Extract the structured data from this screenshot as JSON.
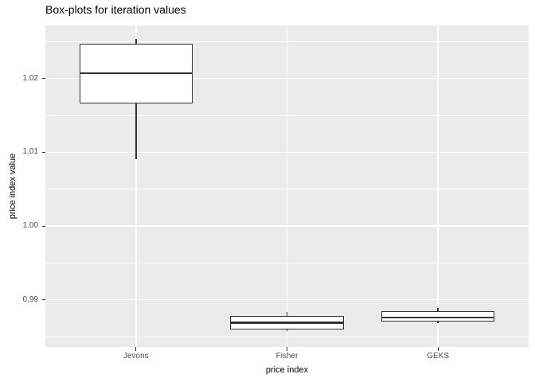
{
  "chart_data": {
    "type": "boxplot",
    "title": "Box-plots for iteration values",
    "xlabel": "price index",
    "ylabel": "price index value",
    "categories": [
      "Jevons",
      "Fisher",
      "GEKS"
    ],
    "series": [
      {
        "name": "Jevons",
        "whisker_low": 1.0091,
        "q1": 1.0166,
        "median": 1.0207,
        "q3": 1.0247,
        "whisker_high": 1.0254
      },
      {
        "name": "Fisher",
        "whisker_low": 0.9858,
        "q1": 0.986,
        "median": 0.9869,
        "q3": 0.9878,
        "whisker_high": 0.9883
      },
      {
        "name": "GEKS",
        "whisker_low": 0.9868,
        "q1": 0.987,
        "median": 0.9876,
        "q3": 0.9885,
        "whisker_high": 0.9889
      }
    ],
    "ylim": [
      0.9836,
      1.0272
    ],
    "yticks_major": [
      0.99,
      1.0,
      1.01,
      1.02
    ],
    "ytick_labels": [
      "0.99",
      "1.00",
      "1.01",
      "1.02"
    ],
    "yticks_minor": [
      0.985,
      0.995,
      1.005,
      1.015,
      1.025
    ],
    "grid": true,
    "legend": "none",
    "box_width_fraction": 0.75,
    "colors": {
      "panel_bg": "#EBEBEB",
      "grid": "#FFFFFF",
      "box_stroke": "#333333",
      "box_fill": "#FFFFFF",
      "tick_mark": "#333333",
      "tick_label": "#4D4D4D",
      "title_text": "#000000",
      "outer_bg": "#FFFFFF"
    }
  }
}
